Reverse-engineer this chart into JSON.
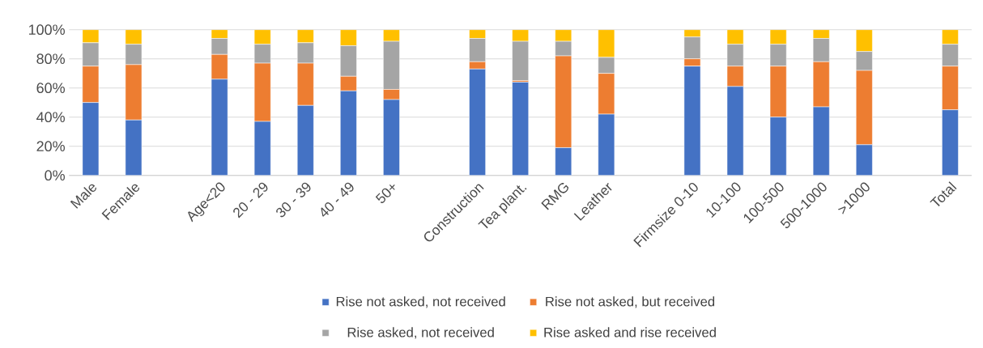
{
  "chart_data": {
    "type": "bar",
    "stacked": true,
    "categories": [
      "Male",
      "Female",
      null,
      "Age<20",
      "20 - 29",
      "30 - 39",
      "40 - 49",
      "50+",
      null,
      "Construction",
      "Tea plant.",
      "RMG",
      "Leather",
      null,
      "Firmsize 0-10",
      "10-100",
      "100-500",
      "500-1000",
      ">1000",
      null,
      "Total"
    ],
    "series": [
      {
        "name": "Rise not asked, not received",
        "color": "#4472c4",
        "values": [
          50,
          38,
          null,
          66,
          37,
          48,
          58,
          52,
          null,
          73,
          64,
          19,
          42,
          null,
          75,
          61,
          40,
          47,
          21,
          null,
          45
        ]
      },
      {
        "name": "Rise not asked, but received",
        "color": "#ed7d31",
        "values": [
          25,
          38,
          null,
          17,
          40,
          29,
          10,
          7,
          null,
          5,
          1,
          63,
          28,
          null,
          5,
          14,
          35,
          31,
          51,
          null,
          30
        ]
      },
      {
        "name": "Rise asked, not received",
        "color": "#a5a5a5",
        "values": [
          16,
          14,
          null,
          11,
          13,
          14,
          21,
          33,
          null,
          16,
          27,
          10,
          11,
          null,
          15,
          15,
          15,
          16,
          13,
          null,
          15
        ]
      },
      {
        "name": "Rise asked and rise received",
        "color": "#ffc000",
        "values": [
          9,
          10,
          null,
          6,
          10,
          9,
          11,
          8,
          null,
          6,
          8,
          8,
          19,
          null,
          5,
          10,
          10,
          6,
          15,
          null,
          10
        ]
      }
    ],
    "ylim": [
      0,
      100
    ],
    "yticks": [
      {
        "value": 0,
        "label": "0%"
      },
      {
        "value": 20,
        "label": "20%"
      },
      {
        "value": 40,
        "label": "40%"
      },
      {
        "value": 60,
        "label": "60%"
      },
      {
        "value": 80,
        "label": "80%"
      },
      {
        "value": 100,
        "label": "100%"
      }
    ],
    "grid": "y",
    "legend": "bottom"
  }
}
